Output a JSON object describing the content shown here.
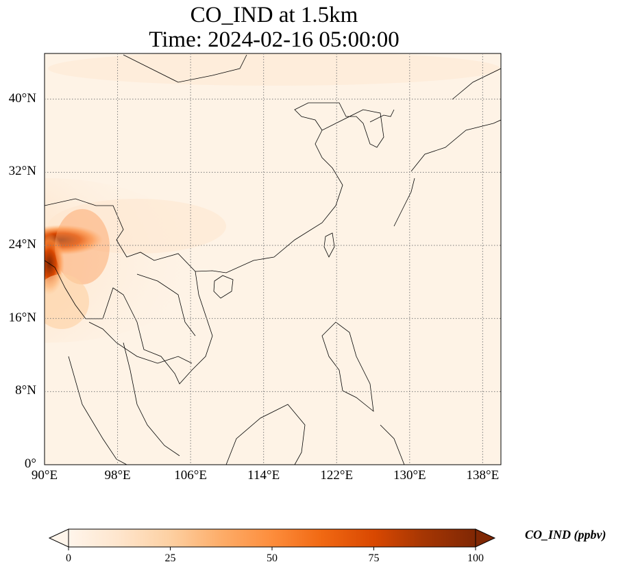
{
  "title": {
    "line1": "CO_IND at 1.5km",
    "line2": "Time: 2024-02-16 05:00:00"
  },
  "map": {
    "lon_range": [
      90,
      140
    ],
    "lat_range": [
      0,
      45
    ],
    "lat_ticks": [
      {
        "value": 0,
        "label": "0°"
      },
      {
        "value": 8,
        "label": "8°N"
      },
      {
        "value": 16,
        "label": "16°N"
      },
      {
        "value": 24,
        "label": "24°N"
      },
      {
        "value": 32,
        "label": "32°N"
      },
      {
        "value": 40,
        "label": "40°N"
      }
    ],
    "lon_ticks": [
      {
        "value": 90,
        "label": "90°E"
      },
      {
        "value": 98,
        "label": "98°E"
      },
      {
        "value": 106,
        "label": "106°E"
      },
      {
        "value": 114,
        "label": "114°E"
      },
      {
        "value": 122,
        "label": "122°E"
      },
      {
        "value": 130,
        "label": "130°E"
      },
      {
        "value": 138,
        "label": "138°E"
      }
    ],
    "gridlines": "dotted"
  },
  "colorbar": {
    "label": "CO_IND (ppbv)",
    "range": [
      0,
      100
    ],
    "ticks": [
      {
        "value": 0,
        "label": "0"
      },
      {
        "value": 25,
        "label": "25"
      },
      {
        "value": 50,
        "label": "50"
      },
      {
        "value": 75,
        "label": "75"
      },
      {
        "value": 100,
        "label": "100"
      }
    ],
    "colormap": [
      "#fff5eb",
      "#fee6ce",
      "#fdd0a2",
      "#fdae6b",
      "#fd8d3c",
      "#f16913",
      "#d94801",
      "#a63603",
      "#7f2704"
    ],
    "extend": "both"
  },
  "colors": {
    "background_field": "#fef3e6",
    "coastline": "#000000",
    "grid": "#7a7a7a"
  }
}
